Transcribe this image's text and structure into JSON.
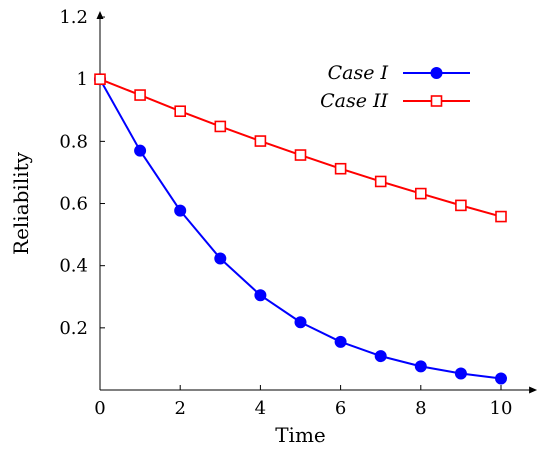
{
  "chart_data": {
    "type": "line",
    "title": "",
    "xlabel": "Time",
    "ylabel": "Reliability",
    "xlim": [
      0,
      10.9
    ],
    "ylim": [
      0,
      1.2
    ],
    "x_ticks": [
      0,
      2,
      4,
      6,
      8,
      10
    ],
    "y_ticks": [
      0.2,
      0.4,
      0.6,
      0.8,
      1,
      1.2
    ],
    "x_tick_labels": [
      "0",
      "2",
      "4",
      "6",
      "8",
      "10"
    ],
    "y_tick_labels": [
      "0.2",
      "0.4",
      "0.6",
      "0.8",
      "1",
      "1.2"
    ],
    "grid": false,
    "legend_position": "top-right",
    "x": [
      0,
      1,
      2,
      3,
      4,
      5,
      6,
      7,
      8,
      9,
      10
    ],
    "series": [
      {
        "name": "Case I",
        "color": "#0000ff",
        "marker": "filled-circle",
        "values": [
          1.0,
          0.77,
          0.577,
          0.423,
          0.305,
          0.218,
          0.155,
          0.109,
          0.076,
          0.053,
          0.037
        ]
      },
      {
        "name": "Case II",
        "color": "#ff0000",
        "marker": "open-square",
        "values": [
          1.0,
          0.949,
          0.897,
          0.848,
          0.801,
          0.756,
          0.712,
          0.671,
          0.632,
          0.594,
          0.558
        ]
      }
    ]
  }
}
